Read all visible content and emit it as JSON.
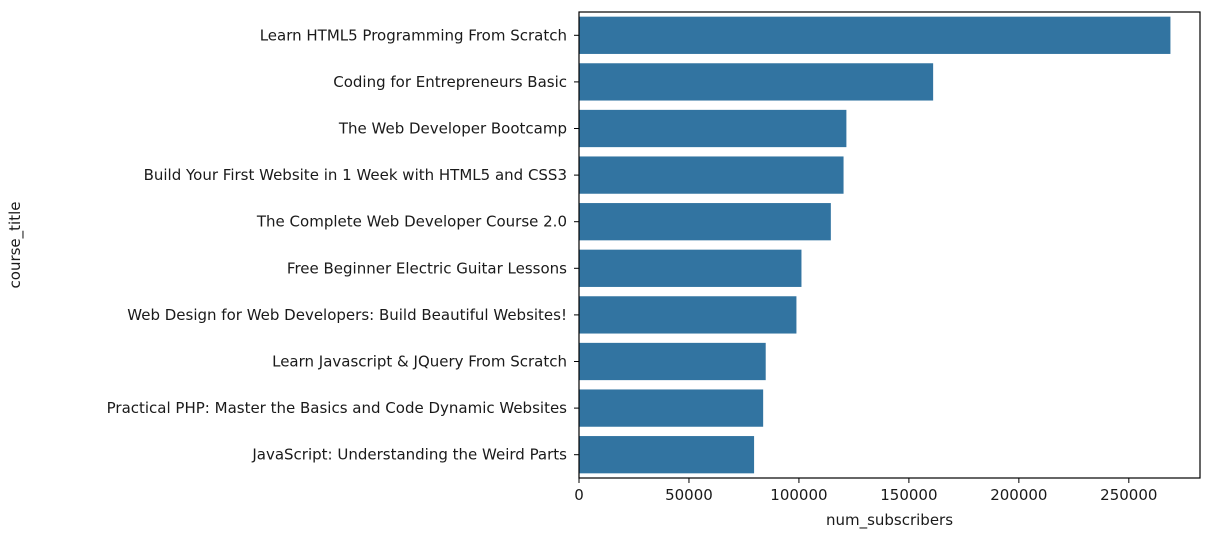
{
  "chart_data": {
    "type": "bar",
    "orientation": "horizontal",
    "categories": [
      "Learn HTML5 Programming From Scratch",
      "Coding for Entrepreneurs Basic",
      "The Web Developer Bootcamp",
      "Build Your First Website in 1 Week with HTML5 and CSS3",
      "The Complete Web Developer Course 2.0",
      "Free Beginner Electric Guitar Lessons",
      "Web Design for Web Developers: Build Beautiful Websites!",
      "Learn Javascript & JQuery From Scratch",
      "Practical PHP: Master the Basics and Code Dynamic Websites",
      "JavaScript: Understanding the Weird Parts"
    ],
    "values": [
      268923,
      161029,
      121584,
      120291,
      114512,
      101154,
      98867,
      84897,
      83737,
      79612
    ],
    "xlabel": "num_subscribers",
    "ylabel": "course_title",
    "xticks": [
      0,
      50000,
      100000,
      150000,
      200000,
      250000
    ],
    "xlim": [
      0,
      282369
    ],
    "bar_color": "#3274a1",
    "grid": false
  }
}
